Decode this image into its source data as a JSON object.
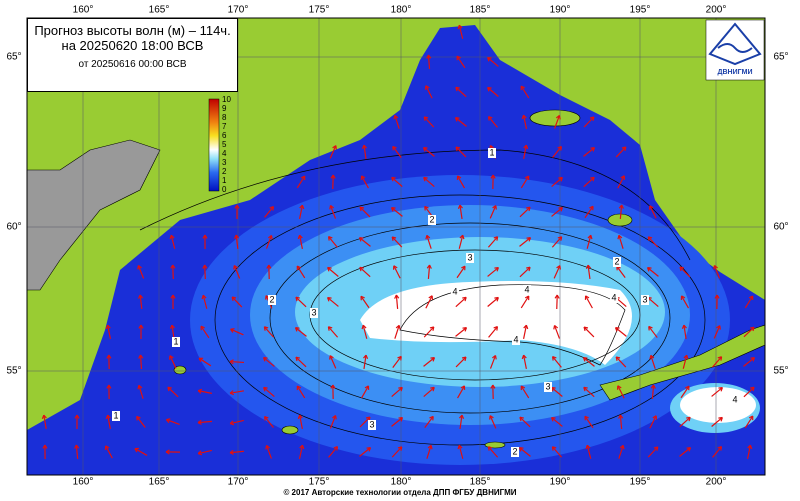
{
  "title": {
    "line1": "Прогноз высоты волн (м) – 114ч.",
    "valid": "на 20250620 18:00 ВСВ",
    "issued": "от 20250616 00:00 ВСВ"
  },
  "colorbar": {
    "labels": [
      10,
      9,
      8,
      7,
      6,
      5,
      4,
      3,
      2,
      1,
      0
    ]
  },
  "longitudes": [
    "160°",
    "165°",
    "170°",
    "175°",
    "180°",
    "185°",
    "190°",
    "195°",
    "200°"
  ],
  "latitudes": [
    "65°",
    "60°",
    "55°"
  ],
  "contour_labels": [
    1,
    2,
    3,
    2,
    2,
    3,
    4,
    4,
    4,
    3,
    4,
    1,
    3,
    1,
    3,
    2,
    4
  ],
  "logo": "ДВНИГМИ",
  "footer": "© 2017 Авторские технологии отдела ДПП ФГБУ ДВНИГМИ"
}
